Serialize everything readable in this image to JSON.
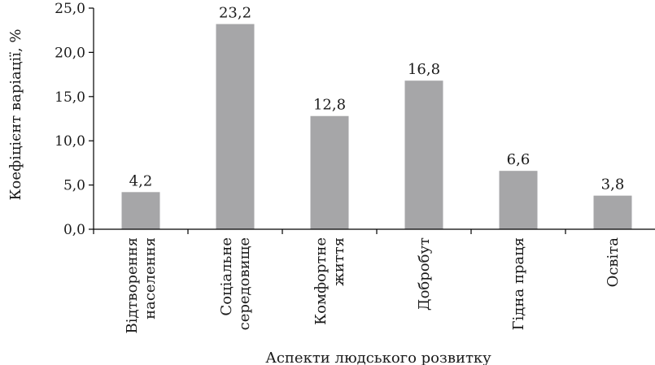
{
  "chart_data": {
    "type": "bar",
    "categories": [
      [
        "Відтворення",
        "населення"
      ],
      [
        "Соціальне",
        "середовище"
      ],
      [
        "Комфортне",
        "життя"
      ],
      [
        "Добробут"
      ],
      [
        "Гідна праця"
      ],
      [
        "Освіта"
      ]
    ],
    "values": [
      4.2,
      23.2,
      12.8,
      16.8,
      6.6,
      3.8
    ],
    "value_labels": [
      "4,2",
      "23,2",
      "12,8",
      "16,8",
      "6,6",
      "3,8"
    ],
    "yticks": [
      "0,0",
      "5,0",
      "10,0",
      "15,0",
      "20,0",
      "25,0"
    ],
    "ylim": [
      0,
      25
    ],
    "xlabel": "Аспекти людського розвитку",
    "ylabel": "Коефіцієнт варіації, %",
    "bar_color": "#a6a6a8",
    "grid": false,
    "legend": false
  }
}
